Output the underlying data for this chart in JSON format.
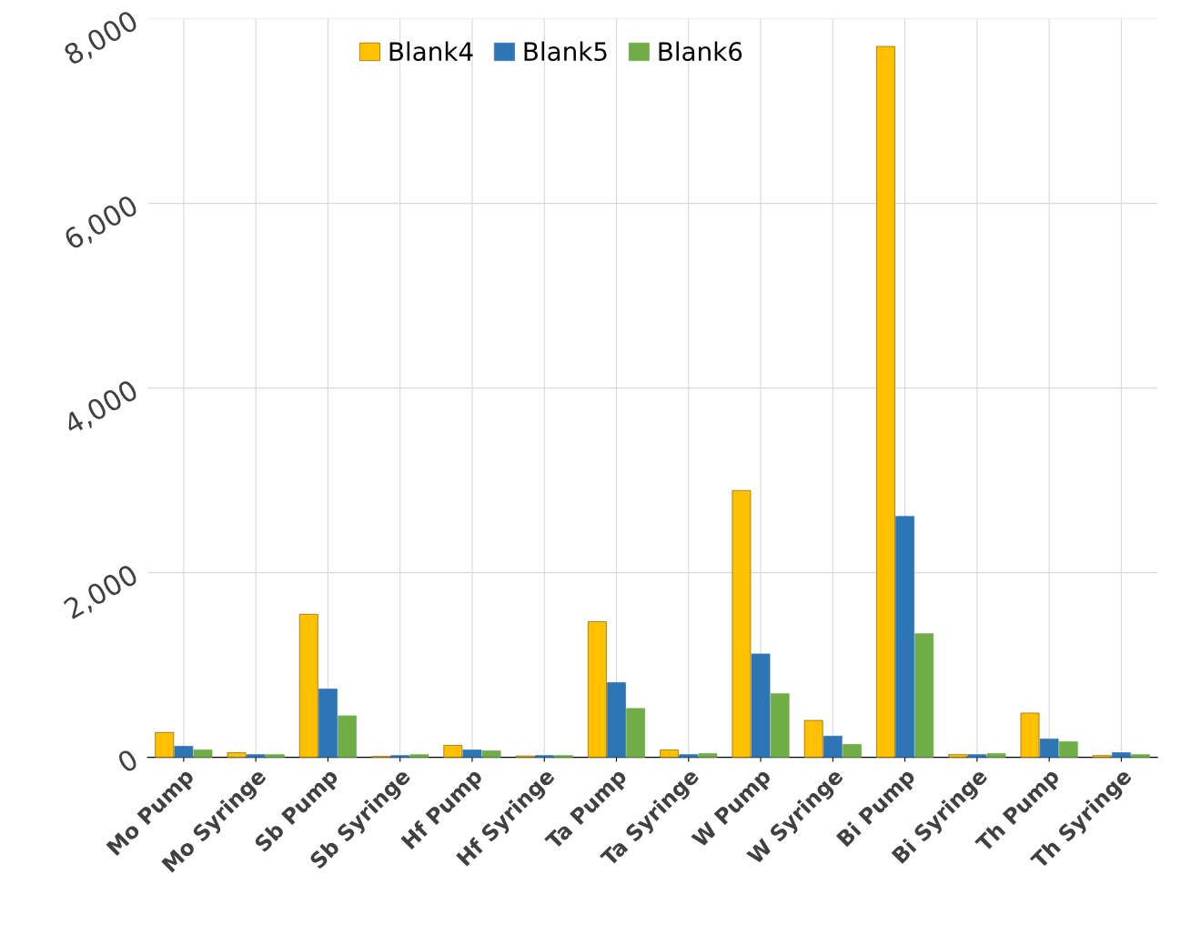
{
  "chart_data": {
    "type": "bar",
    "categories": [
      "Mo Pump",
      "Mo Syringe",
      "Sb Pump",
      "Sb Syringe",
      "Hf Pump",
      "Hf Syringe",
      "Ta Pump",
      "Ta Syringe",
      "W Pump",
      "W Syringe",
      "Bi Pump",
      "Bi Syringe",
      "Th Pump",
      "Th Syringe"
    ],
    "series": [
      {
        "name": "Blank4",
        "color": "#ffc000",
        "values": [
          270,
          50,
          1550,
          10,
          130,
          15,
          1470,
          80,
          2890,
          400,
          7700,
          30,
          480,
          20
        ]
      },
      {
        "name": "Blank5",
        "color": "#2e75b6",
        "values": [
          120,
          30,
          740,
          20,
          80,
          20,
          810,
          30,
          1120,
          230,
          2610,
          30,
          200,
          50
        ]
      },
      {
        "name": "Blank6",
        "color": "#70ad47",
        "values": [
          80,
          30,
          450,
          30,
          70,
          20,
          530,
          40,
          690,
          140,
          1340,
          40,
          170,
          30
        ]
      }
    ],
    "ylim": [
      0,
      8000
    ],
    "yticks": [
      {
        "value": 0,
        "label": "0"
      },
      {
        "value": 2000,
        "label": "2,000"
      },
      {
        "value": 4000,
        "label": "4,000"
      },
      {
        "value": 6000,
        "label": "6,000"
      },
      {
        "value": 8000,
        "label": "8,000"
      }
    ],
    "grid": true,
    "legend": "top"
  }
}
